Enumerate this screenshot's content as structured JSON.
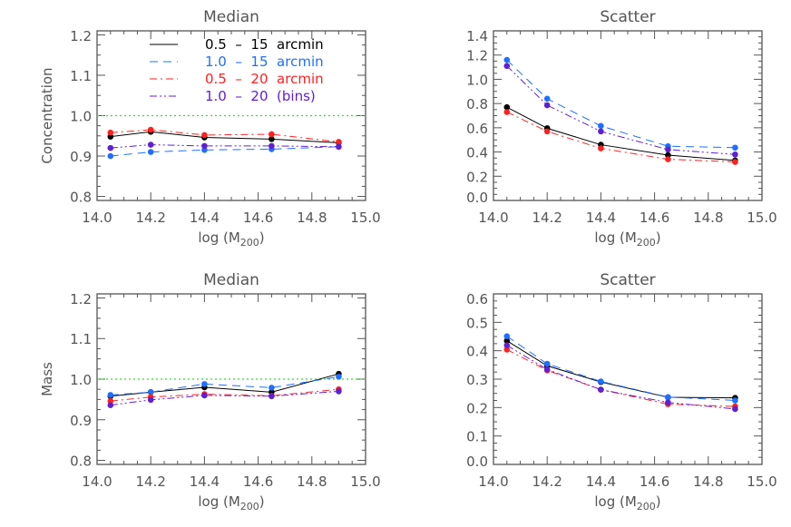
{
  "chart_data": [
    {
      "type": "line",
      "title": "Median",
      "xlabel": "log (M200)",
      "ylabel": "Concentration",
      "xlim": [
        14.0,
        15.0
      ],
      "ylim": [
        0.79,
        1.21
      ],
      "xticks": [
        "14.0",
        "14.2",
        "14.4",
        "14.6",
        "14.8",
        "15.0"
      ],
      "yticks": [
        "0.8",
        "0.9",
        "1.0",
        "1.1",
        "1.2"
      ],
      "reference_line": 1.0,
      "legend": "top",
      "x": [
        14.05,
        14.2,
        14.4,
        14.65,
        14.9
      ],
      "series": [
        {
          "name": "0.5 – 15 arcmin",
          "values": [
            0.948,
            0.96,
            0.946,
            0.942,
            0.933
          ]
        },
        {
          "name": "1.0 – 15 arcmin",
          "values": [
            0.9,
            0.91,
            0.915,
            0.917,
            0.923
          ]
        },
        {
          "name": "0.5 – 20 arcmin",
          "values": [
            0.958,
            0.965,
            0.952,
            0.954,
            0.935
          ]
        },
        {
          "name": "1.0 – 20 (bins)",
          "values": [
            0.92,
            0.928,
            0.925,
            0.925,
            0.923
          ]
        }
      ]
    },
    {
      "type": "line",
      "title": "Scatter",
      "xlabel": "log (M200)",
      "ylabel": "",
      "xlim": [
        14.0,
        15.0
      ],
      "ylim": [
        0.0,
        1.4
      ],
      "xticks": [
        "14.0",
        "14.2",
        "14.4",
        "14.6",
        "14.8",
        "15.0"
      ],
      "yticks": [
        "0.0",
        "0.2",
        "0.4",
        "0.6",
        "0.8",
        "1.0",
        "1.2",
        "1.4"
      ],
      "x": [
        14.05,
        14.2,
        14.4,
        14.65,
        14.9
      ],
      "series": [
        {
          "values": [
            0.77,
            0.596,
            0.46,
            0.374,
            0.33
          ]
        },
        {
          "values": [
            1.16,
            0.84,
            0.615,
            0.448,
            0.436
          ]
        },
        {
          "values": [
            0.73,
            0.57,
            0.43,
            0.34,
            0.318
          ]
        },
        {
          "values": [
            1.11,
            0.786,
            0.57,
            0.42,
            0.38
          ]
        }
      ]
    },
    {
      "type": "line",
      "title": "Median",
      "xlabel": "log (M200)",
      "ylabel": "Mass",
      "xlim": [
        14.0,
        15.0
      ],
      "ylim": [
        0.79,
        1.21
      ],
      "xticks": [
        "14.0",
        "14.2",
        "14.4",
        "14.6",
        "14.8",
        "15.0"
      ],
      "yticks": [
        "0.8",
        "0.9",
        "1.0",
        "1.1",
        "1.2"
      ],
      "reference_line": 1.0,
      "x": [
        14.05,
        14.2,
        14.4,
        14.65,
        14.9
      ],
      "series": [
        {
          "values": [
            0.958,
            0.968,
            0.98,
            0.968,
            1.013
          ]
        },
        {
          "values": [
            0.961,
            0.968,
            0.988,
            0.979,
            1.006
          ]
        },
        {
          "values": [
            0.946,
            0.956,
            0.963,
            0.959,
            0.975
          ]
        },
        {
          "values": [
            0.936,
            0.949,
            0.96,
            0.958,
            0.97
          ]
        }
      ]
    },
    {
      "type": "line",
      "title": "Scatter",
      "xlabel": "log (M200)",
      "ylabel": "",
      "xlim": [
        14.0,
        15.0
      ],
      "ylim": [
        0.0,
        0.6
      ],
      "xticks": [
        "14.0",
        "14.2",
        "14.4",
        "14.6",
        "14.8",
        "15.0"
      ],
      "yticks": [
        "0.0",
        "0.1",
        "0.2",
        "0.3",
        "0.4",
        "0.5",
        "0.6"
      ],
      "x": [
        14.05,
        14.2,
        14.4,
        14.65,
        14.9
      ],
      "series": [
        {
          "values": [
            0.435,
            0.347,
            0.29,
            0.236,
            0.234
          ]
        },
        {
          "values": [
            0.451,
            0.354,
            0.292,
            0.237,
            0.225
          ]
        },
        {
          "values": [
            0.404,
            0.331,
            0.263,
            0.212,
            0.204
          ]
        },
        {
          "values": [
            0.419,
            0.334,
            0.263,
            0.218,
            0.195
          ]
        }
      ]
    }
  ],
  "style": {
    "series_colors": [
      "#000000",
      "#1f6fff",
      "#ff2020",
      "#6020d0"
    ],
    "series_dashes": [
      "solid",
      "dashed",
      "dash-dot",
      "dash-dot-dot"
    ],
    "reference_color": "#33dd33",
    "axis_color": "#555555"
  }
}
